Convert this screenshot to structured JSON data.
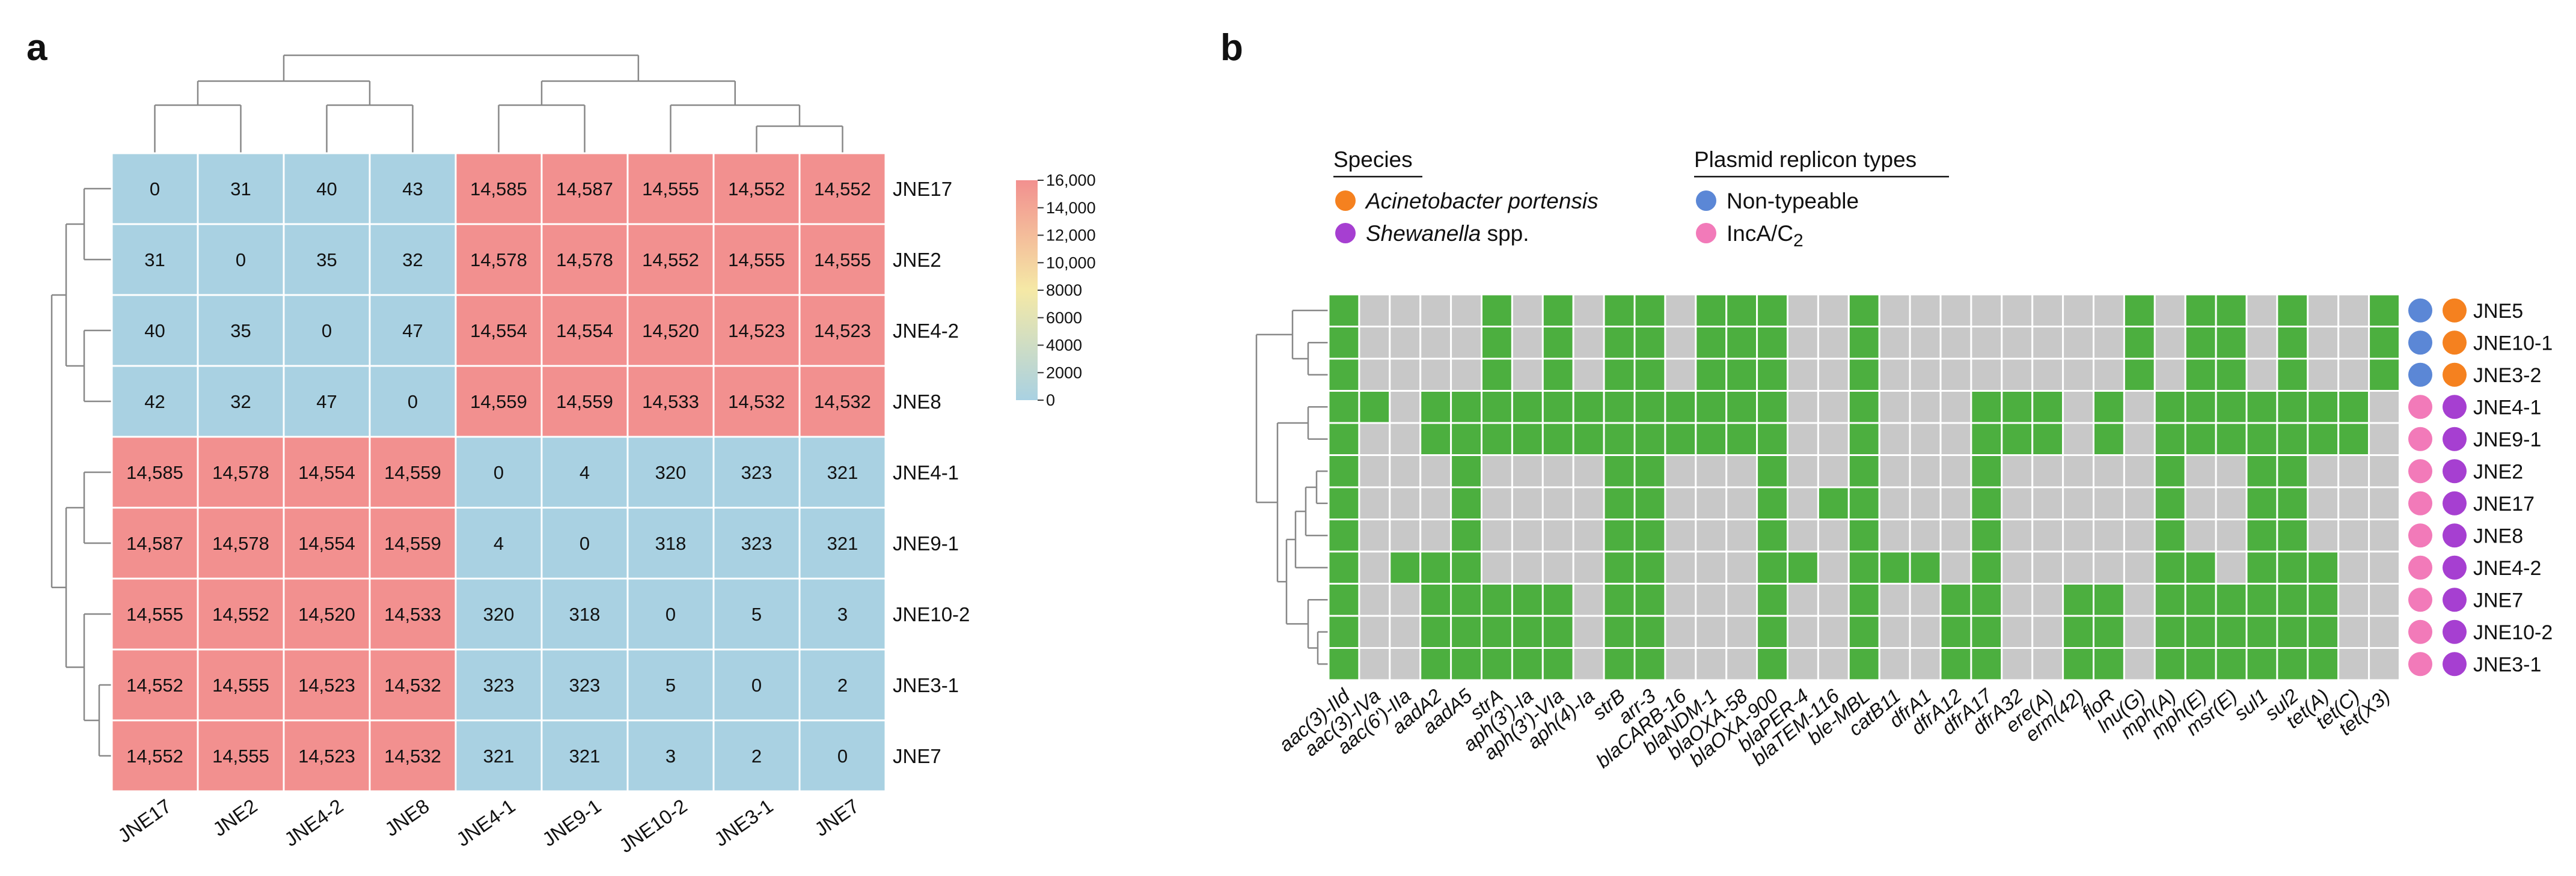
{
  "panel_a": {
    "label": "a",
    "colorbar": {
      "ticks": [
        "16,000",
        "14,000",
        "12,000",
        "10,000",
        "8000",
        "6000",
        "4000",
        "2000",
        "0"
      ],
      "colors": {
        "high": "#f2908f",
        "mid": "#f5e9a6",
        "low": "#a9d1e2"
      }
    }
  },
  "panel_b": {
    "label": "b",
    "legend": {
      "species_title": "Species",
      "species": [
        {
          "name": "Acinetobacter portensis",
          "italic": true,
          "color": "#f5811f"
        },
        {
          "name": "Shewanella",
          "suffix": " spp.",
          "italic": true,
          "color": "#a63fd1"
        }
      ],
      "replicon_title": "Plasmid replicon types",
      "replicons": [
        {
          "name": "Non-typeable",
          "color": "#5b87d6"
        },
        {
          "name": "IncA/C",
          "sub": "2",
          "color": "#f27ab9"
        }
      ]
    },
    "colors": {
      "present": "#4caf3f",
      "absent": "#c8c8c8"
    }
  },
  "chart_data": [
    {
      "type": "heatmap",
      "title": "",
      "rows": [
        "JNE17",
        "JNE2",
        "JNE4-2",
        "JNE8",
        "JNE4-1",
        "JNE9-1",
        "JNE10-2",
        "JNE3-1",
        "JNE7"
      ],
      "columns": [
        "JNE17",
        "JNE2",
        "JNE4-2",
        "JNE8",
        "JNE4-1",
        "JNE9-1",
        "JNE10-2",
        "JNE3-1",
        "JNE7"
      ],
      "value_labels": [
        [
          "0",
          "31",
          "40",
          "43",
          "14,585",
          "14,587",
          "14,555",
          "14,552",
          "14,552"
        ],
        [
          "31",
          "0",
          "35",
          "32",
          "14,578",
          "14,578",
          "14,552",
          "14,555",
          "14,555"
        ],
        [
          "40",
          "35",
          "0",
          "47",
          "14,554",
          "14,554",
          "14,520",
          "14,523",
          "14,523"
        ],
        [
          "42",
          "32",
          "47",
          "0",
          "14,559",
          "14,559",
          "14,533",
          "14,532",
          "14,532"
        ],
        [
          "14,585",
          "14,578",
          "14,554",
          "14,559",
          "0",
          "4",
          "320",
          "323",
          "321"
        ],
        [
          "14,587",
          "14,578",
          "14,554",
          "14,559",
          "4",
          "0",
          "318",
          "323",
          "321"
        ],
        [
          "14,555",
          "14,552",
          "14,520",
          "14,533",
          "320",
          "318",
          "0",
          "5",
          "3"
        ],
        [
          "14,552",
          "14,555",
          "14,523",
          "14,532",
          "323",
          "323",
          "5",
          "0",
          "2"
        ],
        [
          "14,552",
          "14,555",
          "14,523",
          "14,532",
          "321",
          "321",
          "3",
          "2",
          "0"
        ]
      ],
      "values": [
        [
          0,
          31,
          40,
          43,
          14585,
          14587,
          14555,
          14552,
          14552
        ],
        [
          31,
          0,
          35,
          32,
          14578,
          14578,
          14552,
          14555,
          14555
        ],
        [
          40,
          35,
          0,
          47,
          14554,
          14554,
          14520,
          14523,
          14523
        ],
        [
          42,
          32,
          47,
          0,
          14559,
          14559,
          14533,
          14532,
          14532
        ],
        [
          14585,
          14578,
          14554,
          14559,
          0,
          4,
          320,
          323,
          321
        ],
        [
          14587,
          14578,
          14554,
          14559,
          4,
          0,
          318,
          323,
          321
        ],
        [
          14555,
          14552,
          14520,
          14533,
          320,
          318,
          0,
          5,
          3
        ],
        [
          14552,
          14555,
          14523,
          14532,
          323,
          323,
          5,
          0,
          2
        ],
        [
          14552,
          14555,
          14523,
          14532,
          321,
          321,
          3,
          2,
          0
        ]
      ],
      "color_range": [
        0,
        16000
      ]
    },
    {
      "type": "heatmap",
      "title": "",
      "rows": [
        "JNE5",
        "JNE10-1",
        "JNE3-2",
        "JNE4-1",
        "JNE9-1",
        "JNE2",
        "JNE17",
        "JNE8",
        "JNE4-2",
        "JNE7",
        "JNE10-2",
        "JNE3-1"
      ],
      "row_species": [
        "Acinetobacter portensis",
        "Acinetobacter portensis",
        "Acinetobacter portensis",
        "Shewanella spp.",
        "Shewanella spp.",
        "Shewanella spp.",
        "Shewanella spp.",
        "Shewanella spp.",
        "Shewanella spp.",
        "Shewanella spp.",
        "Shewanella spp.",
        "Shewanella spp."
      ],
      "row_replicon": [
        "Non-typeable",
        "Non-typeable",
        "Non-typeable",
        "IncA/C2",
        "IncA/C2",
        "IncA/C2",
        "IncA/C2",
        "IncA/C2",
        "IncA/C2",
        "IncA/C2",
        "IncA/C2",
        "IncA/C2"
      ],
      "columns": [
        "aac(3)-IId",
        "aac(3)-IVa",
        "aac(6')-IIa",
        "aadA2",
        "aadA5",
        "strA",
        "aph(3')-Ia",
        "aph(3')-VIa",
        "aph(4)-Ia",
        "strB",
        "arr-3",
        "blaCARB-16",
        "blaNDM-1",
        "blaOXA-58",
        "blaOXA-900",
        "blaPER-4",
        "blaTEM-116",
        "ble-MBL",
        "catB11",
        "dfrA1",
        "dfrA12",
        "dfrA17",
        "dfrA32",
        "ere(A)",
        "erm(42)",
        "floR",
        "lnu(G)",
        "mph(A)",
        "mph(E)",
        "msr(E)",
        "sul1",
        "sul2",
        "tet(A)",
        "tet(C)",
        "tet(X3)"
      ],
      "columns_italic": [
        "aac(3)-IId",
        "aac(3)-IVa",
        "aac(6')-IIa",
        "aadA2",
        "aadA5",
        "strA",
        "aph(3')-Ia",
        "aph(3')-VIa",
        "aph(4)-Ia",
        "strB",
        "arr-3",
        "blaCARB-16",
        "blaNDM-1",
        "blaOXA-58",
        "blaOXA-900",
        "blaPER-4",
        "blaTEM-116",
        "ble-MBL",
        "catB11",
        "dfrA1",
        "dfrA12",
        "dfrA17",
        "dfrA32",
        "ere(A)",
        "erm(42)",
        "floR",
        "lnu(G)",
        "mph(A)",
        "mph(E)",
        "msr(E)",
        "sul1",
        "sul2",
        "tet(A)",
        "tet(C)",
        "tet(X3)"
      ],
      "presence": [
        [
          1,
          0,
          0,
          0,
          0,
          1,
          0,
          1,
          0,
          1,
          1,
          0,
          1,
          1,
          1,
          0,
          0,
          1,
          0,
          0,
          0,
          0,
          0,
          0,
          0,
          0,
          1,
          0,
          1,
          1,
          0,
          1,
          0,
          0,
          1
        ],
        [
          1,
          0,
          0,
          0,
          0,
          1,
          0,
          1,
          0,
          1,
          1,
          0,
          1,
          1,
          1,
          0,
          0,
          1,
          0,
          0,
          0,
          0,
          0,
          0,
          0,
          0,
          1,
          0,
          1,
          1,
          0,
          1,
          0,
          0,
          1
        ],
        [
          1,
          0,
          0,
          0,
          0,
          1,
          0,
          1,
          0,
          1,
          1,
          0,
          1,
          1,
          1,
          0,
          0,
          1,
          0,
          0,
          0,
          0,
          0,
          0,
          0,
          0,
          1,
          0,
          1,
          1,
          0,
          1,
          0,
          0,
          1
        ],
        [
          1,
          1,
          0,
          1,
          1,
          1,
          1,
          1,
          1,
          1,
          1,
          1,
          1,
          1,
          1,
          0,
          0,
          1,
          0,
          0,
          0,
          1,
          1,
          1,
          0,
          1,
          0,
          1,
          1,
          1,
          1,
          1,
          1,
          1,
          0
        ],
        [
          1,
          0,
          0,
          1,
          1,
          1,
          1,
          1,
          1,
          1,
          1,
          1,
          1,
          1,
          1,
          0,
          0,
          1,
          0,
          0,
          0,
          1,
          1,
          1,
          0,
          1,
          0,
          1,
          1,
          1,
          1,
          1,
          1,
          1,
          0
        ],
        [
          1,
          0,
          0,
          0,
          1,
          0,
          0,
          0,
          0,
          1,
          1,
          0,
          0,
          0,
          1,
          0,
          0,
          1,
          0,
          0,
          0,
          1,
          0,
          0,
          0,
          0,
          0,
          1,
          0,
          0,
          1,
          1,
          0,
          0,
          0
        ],
        [
          1,
          0,
          0,
          0,
          1,
          0,
          0,
          0,
          0,
          1,
          1,
          0,
          0,
          0,
          1,
          0,
          1,
          1,
          0,
          0,
          0,
          1,
          0,
          0,
          0,
          0,
          0,
          1,
          0,
          0,
          1,
          1,
          0,
          0,
          0
        ],
        [
          1,
          0,
          0,
          0,
          1,
          0,
          0,
          0,
          0,
          1,
          1,
          0,
          0,
          0,
          1,
          0,
          0,
          1,
          0,
          0,
          0,
          1,
          0,
          0,
          0,
          0,
          0,
          1,
          0,
          0,
          1,
          1,
          0,
          0,
          0
        ],
        [
          1,
          0,
          1,
          1,
          1,
          0,
          0,
          0,
          0,
          1,
          1,
          0,
          0,
          0,
          1,
          1,
          0,
          1,
          1,
          1,
          0,
          1,
          0,
          0,
          0,
          0,
          0,
          1,
          1,
          0,
          1,
          1,
          1,
          0,
          0
        ],
        [
          1,
          0,
          0,
          1,
          1,
          1,
          1,
          1,
          0,
          1,
          1,
          0,
          0,
          0,
          1,
          0,
          0,
          1,
          0,
          0,
          1,
          1,
          0,
          0,
          1,
          1,
          0,
          1,
          1,
          1,
          1,
          1,
          1,
          0,
          0
        ],
        [
          1,
          0,
          0,
          1,
          1,
          1,
          1,
          1,
          0,
          1,
          1,
          0,
          0,
          0,
          1,
          0,
          0,
          1,
          0,
          0,
          1,
          1,
          0,
          0,
          1,
          1,
          0,
          1,
          1,
          1,
          1,
          1,
          1,
          0,
          0
        ],
        [
          1,
          0,
          0,
          1,
          1,
          1,
          1,
          1,
          0,
          1,
          1,
          0,
          0,
          0,
          1,
          0,
          0,
          1,
          0,
          0,
          1,
          1,
          0,
          0,
          1,
          1,
          0,
          1,
          1,
          1,
          1,
          1,
          1,
          0,
          0
        ]
      ]
    }
  ]
}
